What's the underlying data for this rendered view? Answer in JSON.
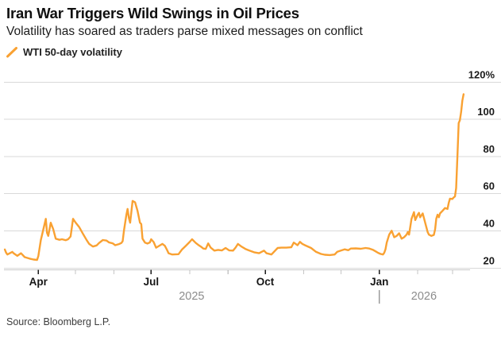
{
  "header": {
    "title": "Iran War Triggers Wild Swings in Oil Prices",
    "subtitle": "Volatility has soared as traders parse mixed messages on conflict"
  },
  "legend": {
    "label": "WTI 50-day volatility",
    "marker": "orange-slash"
  },
  "source": "Source: Bloomberg L.P.",
  "colors": {
    "line": "#F9A132",
    "grid": "#d9d9d9",
    "axis": "#c9c9c9",
    "tick_major": "#1a1a1a",
    "tick_minor": "#c6c6c6",
    "year_separator": "#9b9b9b"
  },
  "chart_data": {
    "type": "line",
    "title": "Iran War Triggers Wild Swings in Oil Prices",
    "subtitle": "Volatility has soared as traders parse mixed messages on conflict",
    "unit": "%",
    "grid": "horizontal",
    "legend_position": "top-left",
    "ylim": [
      20,
      120
    ],
    "y_axis": {
      "side": "right",
      "ticks": [
        20,
        40,
        60,
        80,
        100,
        120
      ],
      "tick_labels": [
        "20",
        "40",
        "60",
        "80",
        "100",
        "120%"
      ]
    },
    "x_axis": {
      "range": [
        "2025-03-01",
        "2026-03-14"
      ],
      "months": [
        {
          "d": "2025-04-01",
          "label": "Apr"
        },
        {
          "d": "2025-05-01",
          "label": ""
        },
        {
          "d": "2025-06-01",
          "label": ""
        },
        {
          "d": "2025-07-01",
          "label": "Jul"
        },
        {
          "d": "2025-08-01",
          "label": ""
        },
        {
          "d": "2025-09-01",
          "label": ""
        },
        {
          "d": "2025-10-01",
          "label": "Oct"
        },
        {
          "d": "2025-11-01",
          "label": ""
        },
        {
          "d": "2025-12-01",
          "label": ""
        },
        {
          "d": "2026-01-01",
          "label": "Jan"
        },
        {
          "d": "2026-02-01",
          "label": ""
        },
        {
          "d": "2026-03-01",
          "label": ""
        }
      ],
      "years": [
        {
          "label": "2025",
          "from": "2025-03-01",
          "to": "2026-01-01"
        },
        {
          "label": "2026",
          "from": "2026-01-01",
          "to": "2026-03-14"
        }
      ],
      "year_separator_date": "2026-01-01"
    },
    "series": [
      {
        "name": "WTI 50-day volatility",
        "color": "#F9A132",
        "points": [
          [
            "2025-03-05",
            30.0
          ],
          [
            "2025-03-06",
            28.3
          ],
          [
            "2025-03-07",
            27.3
          ],
          [
            "2025-03-11",
            28.7
          ],
          [
            "2025-03-12",
            28.0
          ],
          [
            "2025-03-15",
            26.6
          ],
          [
            "2025-03-18",
            28.0
          ],
          [
            "2025-03-21",
            25.9
          ],
          [
            "2025-03-25",
            25.1
          ],
          [
            "2025-03-28",
            24.6
          ],
          [
            "2025-03-31",
            24.4
          ],
          [
            "2025-04-01",
            26.5
          ],
          [
            "2025-04-03",
            35.0
          ],
          [
            "2025-04-07",
            46.5
          ],
          [
            "2025-04-08",
            39.0
          ],
          [
            "2025-04-09",
            37.3
          ],
          [
            "2025-04-11",
            44.4
          ],
          [
            "2025-04-13",
            41.0
          ],
          [
            "2025-04-15",
            35.8
          ],
          [
            "2025-04-18",
            35.2
          ],
          [
            "2025-04-20",
            35.5
          ],
          [
            "2025-04-23",
            35.0
          ],
          [
            "2025-04-25",
            35.5
          ],
          [
            "2025-04-27",
            37.0
          ],
          [
            "2025-04-29",
            46.5
          ],
          [
            "2025-05-01",
            44.5
          ],
          [
            "2025-05-04",
            42.0
          ],
          [
            "2025-05-07",
            38.4
          ],
          [
            "2025-05-10",
            35.0
          ],
          [
            "2025-05-12",
            33.0
          ],
          [
            "2025-05-15",
            31.6
          ],
          [
            "2025-05-18",
            32.2
          ],
          [
            "2025-05-20",
            33.5
          ],
          [
            "2025-05-23",
            35.1
          ],
          [
            "2025-05-26",
            34.8
          ],
          [
            "2025-05-28",
            33.8
          ],
          [
            "2025-05-31",
            33.3
          ],
          [
            "2025-06-02",
            32.3
          ],
          [
            "2025-06-05",
            32.9
          ],
          [
            "2025-06-07",
            33.5
          ],
          [
            "2025-06-08",
            34.5
          ],
          [
            "2025-06-09",
            40.1
          ],
          [
            "2025-06-11",
            48.7
          ],
          [
            "2025-06-12",
            51.8
          ],
          [
            "2025-06-13",
            47.0
          ],
          [
            "2025-06-14",
            44.4
          ],
          [
            "2025-06-16",
            56.1
          ],
          [
            "2025-06-18",
            55.4
          ],
          [
            "2025-06-20",
            50.8
          ],
          [
            "2025-06-22",
            44.4
          ],
          [
            "2025-06-23",
            43.7
          ],
          [
            "2025-06-24",
            35.8
          ],
          [
            "2025-06-26",
            33.7
          ],
          [
            "2025-06-28",
            33.2
          ],
          [
            "2025-06-30",
            33.8
          ],
          [
            "2025-07-01",
            35.5
          ],
          [
            "2025-07-03",
            34.0
          ],
          [
            "2025-07-05",
            31.0
          ],
          [
            "2025-07-10",
            33.0
          ],
          [
            "2025-07-12",
            32.0
          ],
          [
            "2025-07-14",
            29.5
          ],
          [
            "2025-07-15",
            28.0
          ],
          [
            "2025-07-18",
            27.3
          ],
          [
            "2025-07-23",
            27.5
          ],
          [
            "2025-07-26",
            30.1
          ],
          [
            "2025-07-29",
            32.0
          ],
          [
            "2025-08-01",
            34.0
          ],
          [
            "2025-08-03",
            35.5
          ],
          [
            "2025-08-06",
            33.5
          ],
          [
            "2025-08-08",
            32.5
          ],
          [
            "2025-08-10",
            31.6
          ],
          [
            "2025-08-12",
            30.5
          ],
          [
            "2025-08-14",
            30.3
          ],
          [
            "2025-08-16",
            33.3
          ],
          [
            "2025-08-18",
            31.0
          ],
          [
            "2025-08-21",
            29.4
          ],
          [
            "2025-08-24",
            29.8
          ],
          [
            "2025-08-27",
            29.5
          ],
          [
            "2025-08-30",
            30.8
          ],
          [
            "2025-09-02",
            29.5
          ],
          [
            "2025-09-05",
            29.4
          ],
          [
            "2025-09-07",
            31.0
          ],
          [
            "2025-09-09",
            33.0
          ],
          [
            "2025-09-12",
            31.5
          ],
          [
            "2025-09-15",
            30.3
          ],
          [
            "2025-09-18",
            29.5
          ],
          [
            "2025-09-22",
            28.5
          ],
          [
            "2025-09-26",
            28.0
          ],
          [
            "2025-09-30",
            29.4
          ],
          [
            "2025-10-02",
            28.0
          ],
          [
            "2025-10-06",
            27.3
          ],
          [
            "2025-10-11",
            30.8
          ],
          [
            "2025-10-14",
            31.0
          ],
          [
            "2025-10-18",
            31.0
          ],
          [
            "2025-10-22",
            31.2
          ],
          [
            "2025-10-24",
            33.7
          ],
          [
            "2025-10-27",
            32.3
          ],
          [
            "2025-10-29",
            34.1
          ],
          [
            "2025-10-31",
            33.0
          ],
          [
            "2025-11-02",
            32.3
          ],
          [
            "2025-11-07",
            30.8
          ],
          [
            "2025-11-11",
            28.7
          ],
          [
            "2025-11-15",
            27.6
          ],
          [
            "2025-11-18",
            27.2
          ],
          [
            "2025-11-22",
            27.0
          ],
          [
            "2025-11-26",
            27.3
          ],
          [
            "2025-11-28",
            28.7
          ],
          [
            "2025-12-01",
            29.4
          ],
          [
            "2025-12-04",
            30.1
          ],
          [
            "2025-12-07",
            29.6
          ],
          [
            "2025-12-09",
            30.5
          ],
          [
            "2025-12-13",
            30.6
          ],
          [
            "2025-12-17",
            30.4
          ],
          [
            "2025-12-21",
            30.8
          ],
          [
            "2025-12-24",
            30.5
          ],
          [
            "2025-12-27",
            29.8
          ],
          [
            "2025-12-29",
            29.0
          ],
          [
            "2025-12-31",
            28.2
          ],
          [
            "2026-01-02",
            27.6
          ],
          [
            "2026-01-04",
            27.3
          ],
          [
            "2026-01-05",
            28.3
          ],
          [
            "2026-01-06",
            30.1
          ],
          [
            "2026-01-07",
            33.7
          ],
          [
            "2026-01-09",
            38.0
          ],
          [
            "2026-01-11",
            40.1
          ],
          [
            "2026-01-13",
            36.6
          ],
          [
            "2026-01-15",
            37.3
          ],
          [
            "2026-01-17",
            38.7
          ],
          [
            "2026-01-19",
            35.8
          ],
          [
            "2026-01-21",
            36.6
          ],
          [
            "2026-01-23",
            38.0
          ],
          [
            "2026-01-24",
            39.4
          ],
          [
            "2026-01-25",
            38.0
          ],
          [
            "2026-01-27",
            46.5
          ],
          [
            "2026-01-29",
            50.1
          ],
          [
            "2026-01-30",
            45.8
          ],
          [
            "2026-02-01",
            48.7
          ],
          [
            "2026-02-02",
            49.7
          ],
          [
            "2026-02-03",
            47.3
          ],
          [
            "2026-02-05",
            49.4
          ],
          [
            "2026-02-07",
            44.4
          ],
          [
            "2026-02-09",
            39.4
          ],
          [
            "2026-02-10",
            38.0
          ],
          [
            "2026-02-12",
            37.3
          ],
          [
            "2026-02-14",
            37.8
          ],
          [
            "2026-02-15",
            40.8
          ],
          [
            "2026-02-16",
            46.6
          ],
          [
            "2026-02-17",
            48.7
          ],
          [
            "2026-02-18",
            47.3
          ],
          [
            "2026-02-19",
            49.4
          ],
          [
            "2026-02-21",
            50.8
          ],
          [
            "2026-02-23",
            52.3
          ],
          [
            "2026-02-25",
            51.8
          ],
          [
            "2026-02-26",
            55.1
          ],
          [
            "2026-02-27",
            57.3
          ],
          [
            "2026-03-01",
            57.2
          ],
          [
            "2026-03-02",
            58.0
          ],
          [
            "2026-03-03",
            58.5
          ],
          [
            "2026-03-04",
            63.0
          ],
          [
            "2026-03-05",
            80.0
          ],
          [
            "2026-03-06",
            98.0
          ],
          [
            "2026-03-07",
            99.5
          ],
          [
            "2026-03-08",
            104.0
          ],
          [
            "2026-03-09",
            110.0
          ],
          [
            "2026-03-10",
            113.5
          ]
        ]
      }
    ]
  }
}
